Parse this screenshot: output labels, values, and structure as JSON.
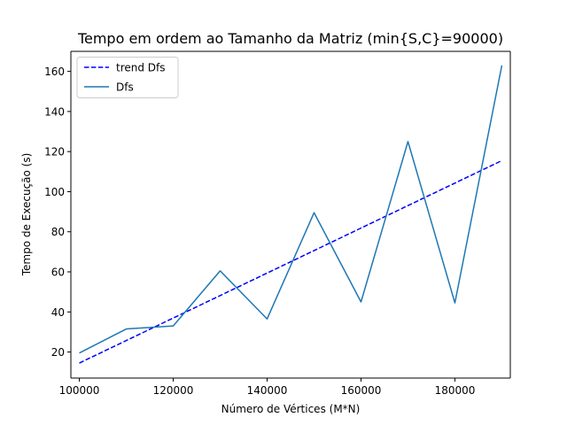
{
  "chart_data": {
    "type": "line",
    "title": "Tempo em ordem ao Tamanho da Matriz (min{S,C}=90000)",
    "xlabel": "Número de Vértices (M*N)",
    "ylabel": "Tempo de Execução (s)",
    "xlim": [
      98200,
      191800
    ],
    "ylim": [
      7,
      170
    ],
    "xticks": [
      100000,
      120000,
      140000,
      160000,
      180000
    ],
    "yticks": [
      20,
      40,
      60,
      80,
      100,
      120,
      140,
      160
    ],
    "grid": false,
    "legend_position": "top-left",
    "series": [
      {
        "name": "trend Dfs",
        "color": "#0000ff",
        "style": "dashed",
        "x": [
          100000,
          190000
        ],
        "y": [
          14.5,
          115.5
        ]
      },
      {
        "name": "Dfs",
        "color": "#1f77b4",
        "style": "solid",
        "x": [
          100000,
          110000,
          120000,
          130000,
          140000,
          150000,
          160000,
          170000,
          180000,
          190000
        ],
        "y": [
          19.5,
          31.5,
          33,
          60.5,
          36.5,
          89.5,
          45,
          125,
          44.5,
          163
        ]
      }
    ]
  }
}
